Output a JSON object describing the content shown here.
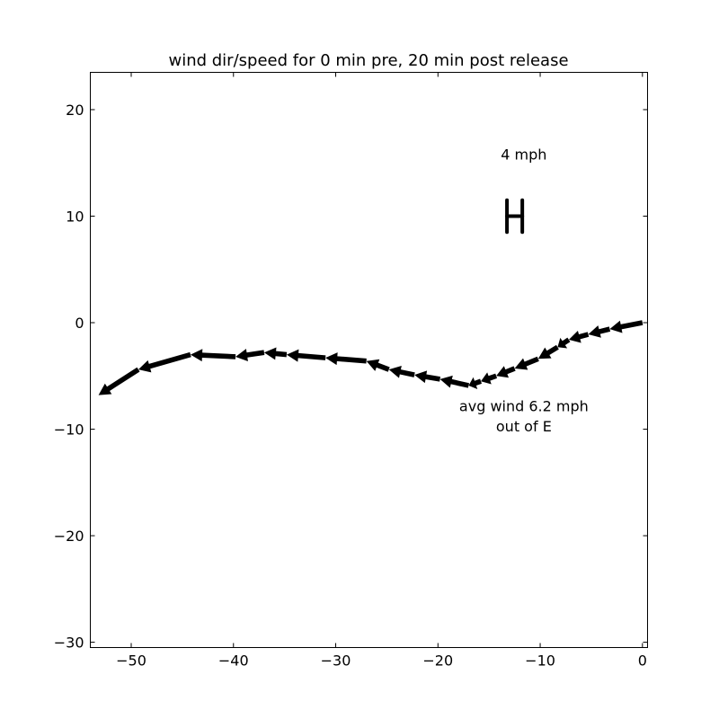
{
  "chart_data": {
    "type": "quiver",
    "title": "wind dir/speed for 0 min pre, 20 min post release",
    "xlabel": "",
    "ylabel": "",
    "xlim": [
      -54,
      0.5
    ],
    "ylim": [
      -30.5,
      23.5
    ],
    "x_ticks": [
      -50,
      -40,
      -30,
      -20,
      -10,
      0
    ],
    "x_tick_labels": [
      "−50",
      "−40",
      "−30",
      "−20",
      "−10",
      "0"
    ],
    "y_ticks": [
      20,
      10,
      0,
      -10,
      -20,
      -30
    ],
    "y_tick_labels": [
      "20",
      "10",
      "0",
      "−10",
      "−20",
      "−30"
    ],
    "grid": false,
    "arrows": [
      {
        "x0": 0.0,
        "y0": 0.0,
        "x1": -3.2,
        "y1": -0.6
      },
      {
        "x0": -3.2,
        "y0": -0.6,
        "x1": -5.3,
        "y1": -1.1
      },
      {
        "x0": -5.3,
        "y0": -1.1,
        "x1": -7.2,
        "y1": -1.6
      },
      {
        "x0": -7.2,
        "y0": -1.6,
        "x1": -8.3,
        "y1": -2.3
      },
      {
        "x0": -8.3,
        "y0": -2.3,
        "x1": -10.2,
        "y1": -3.4
      },
      {
        "x0": -10.2,
        "y0": -3.4,
        "x1": -12.5,
        "y1": -4.3
      },
      {
        "x0": -12.5,
        "y0": -4.3,
        "x1": -14.3,
        "y1": -5.0
      },
      {
        "x0": -14.3,
        "y0": -5.0,
        "x1": -15.8,
        "y1": -5.5
      },
      {
        "x0": -15.8,
        "y0": -5.5,
        "x1": -17.0,
        "y1": -5.9
      },
      {
        "x0": -17.0,
        "y0": -5.9,
        "x1": -19.8,
        "y1": -5.3
      },
      {
        "x0": -19.8,
        "y0": -5.3,
        "x1": -22.3,
        "y1": -4.9
      },
      {
        "x0": -22.3,
        "y0": -4.9,
        "x1": -24.8,
        "y1": -4.4
      },
      {
        "x0": -24.8,
        "y0": -4.4,
        "x1": -27.0,
        "y1": -3.6
      },
      {
        "x0": -27.0,
        "y0": -3.6,
        "x1": -31.0,
        "y1": -3.3
      },
      {
        "x0": -31.0,
        "y0": -3.3,
        "x1": -34.8,
        "y1": -3.0
      },
      {
        "x0": -34.8,
        "y0": -3.0,
        "x1": -37.0,
        "y1": -2.8
      },
      {
        "x0": -37.0,
        "y0": -2.8,
        "x1": -39.8,
        "y1": -3.2
      },
      {
        "x0": -39.8,
        "y0": -3.2,
        "x1": -44.2,
        "y1": -3.0
      },
      {
        "x0": -44.2,
        "y0": -3.0,
        "x1": -49.3,
        "y1": -4.4
      },
      {
        "x0": -49.3,
        "y0": -4.4,
        "x1": -53.2,
        "y1": -6.8
      }
    ],
    "scale_marker": {
      "x": -12.5,
      "y": 10,
      "half_width": 0.75,
      "half_height": 1.5
    },
    "scale_label": "4 mph",
    "annotation_lines": [
      "avg wind 6.2 mph",
      "out of E"
    ]
  }
}
